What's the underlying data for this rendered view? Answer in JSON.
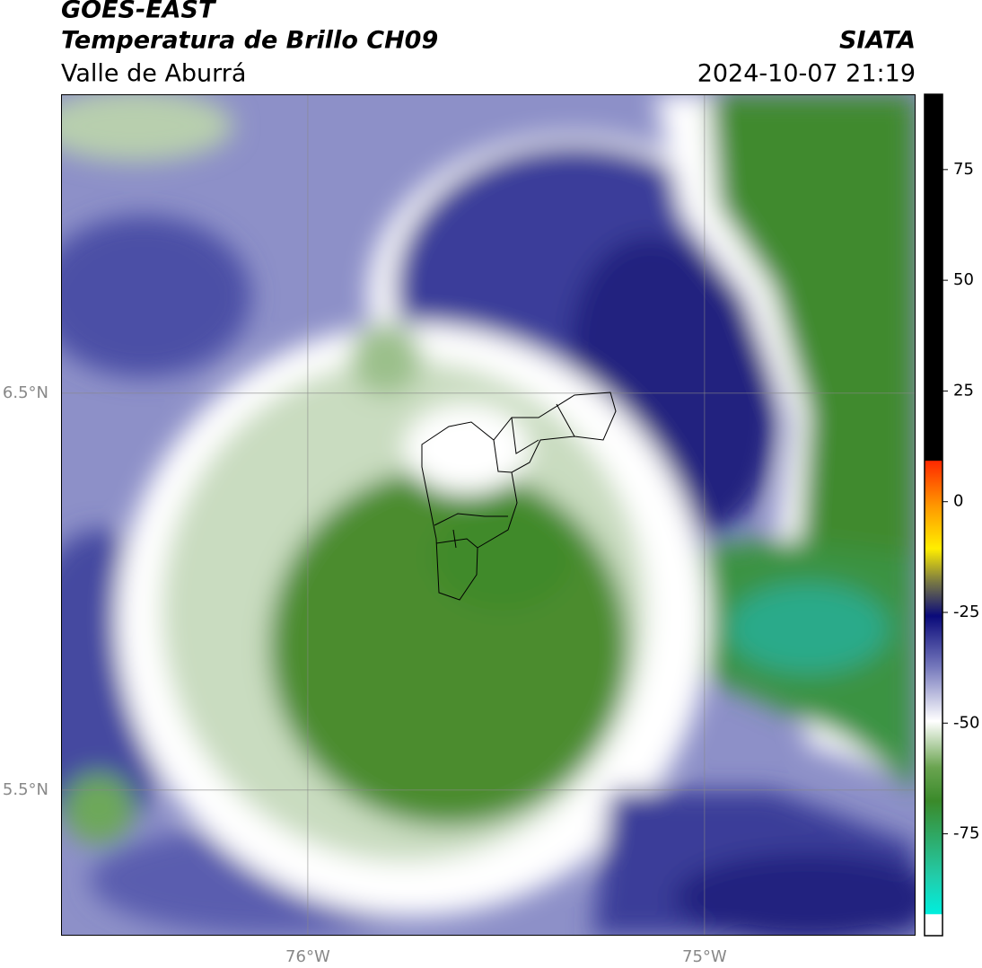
{
  "header": {
    "satellite": "GOES-EAST",
    "product": "Temperatura de Brillo CH09",
    "region": "Valle de Aburrá",
    "agency": "SIATA",
    "datetime": "2024-10-07 21:19"
  },
  "map": {
    "lon_lim": [
      -76.622,
      -74.468
    ],
    "lat_lim": [
      5.133,
      7.253
    ],
    "lon_ticks": [
      {
        "value": -76,
        "label": "76°W"
      },
      {
        "value": -75,
        "label": "75°W"
      }
    ],
    "lat_ticks": [
      {
        "value": 6.5,
        "label": "6.5°N"
      },
      {
        "value": 5.5,
        "label": "5.5°N"
      }
    ],
    "grid": true
  },
  "colorbar": {
    "range": [
      -98,
      92
    ],
    "ticks": [
      75,
      50,
      25,
      0,
      -25,
      -50,
      -75
    ]
  }
}
